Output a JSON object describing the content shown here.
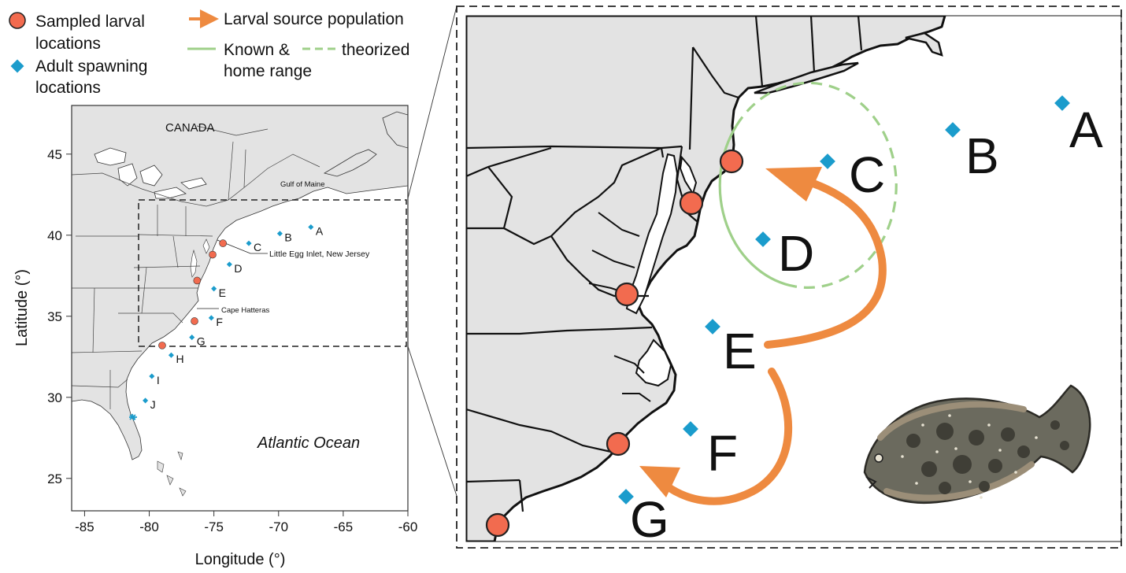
{
  "legend": {
    "sampled": "Sampled larval locations",
    "sampled_l1": "Sampled larval",
    "sampled_l2": "locations",
    "adult": "Adult spawning locations",
    "adult_l1": "Adult spawning",
    "adult_l2": "locations",
    "source": "Larval source population",
    "known": "Known &",
    "theorized": "theorized",
    "home_range": "home range"
  },
  "colors": {
    "larval_marker": "#f26b4f",
    "spawning_marker": "#1b9ccc",
    "source_arrow": "#ee8a40",
    "home_range": "#9fd08a",
    "land": "#e3e3e3"
  },
  "overview_map": {
    "x_axis": {
      "label": "Longitude (°)",
      "ticks": [
        -85,
        -80,
        -75,
        -70,
        -65,
        -60
      ],
      "range": [
        -86,
        -60
      ]
    },
    "y_axis": {
      "label": "Latitude (°)",
      "ticks": [
        25,
        30,
        35,
        40,
        45
      ],
      "range": [
        23,
        48
      ]
    },
    "labels": {
      "canada": "CANADA",
      "gulf": "Gulf of Maine",
      "inlet": "Little Egg Inlet, New Jersey",
      "hatteras": "Cape Hatteras",
      "ocean": "Atlantic Ocean"
    },
    "larval_sites": [
      {
        "lon": -74.3,
        "lat": 39.5
      },
      {
        "lon": -75.1,
        "lat": 38.8
      },
      {
        "lon": -76.3,
        "lat": 37.2
      },
      {
        "lon": -76.5,
        "lat": 34.7
      },
      {
        "lon": -79.0,
        "lat": 33.2
      }
    ],
    "spawning_sites": [
      {
        "id": "A",
        "lon": -67.5,
        "lat": 40.5
      },
      {
        "id": "B",
        "lon": -69.9,
        "lat": 40.1
      },
      {
        "id": "C",
        "lon": -72.3,
        "lat": 39.5
      },
      {
        "id": "D",
        "lon": -73.8,
        "lat": 38.2
      },
      {
        "id": "E",
        "lon": -75.0,
        "lat": 36.7
      },
      {
        "id": "F",
        "lon": -75.2,
        "lat": 34.9
      },
      {
        "id": "G",
        "lon": -76.7,
        "lat": 33.7
      },
      {
        "id": "H",
        "lon": -78.3,
        "lat": 32.6
      },
      {
        "id": "I",
        "lon": -79.8,
        "lat": 31.3
      },
      {
        "id": "J",
        "lon": -80.3,
        "lat": 29.8
      }
    ]
  }
}
